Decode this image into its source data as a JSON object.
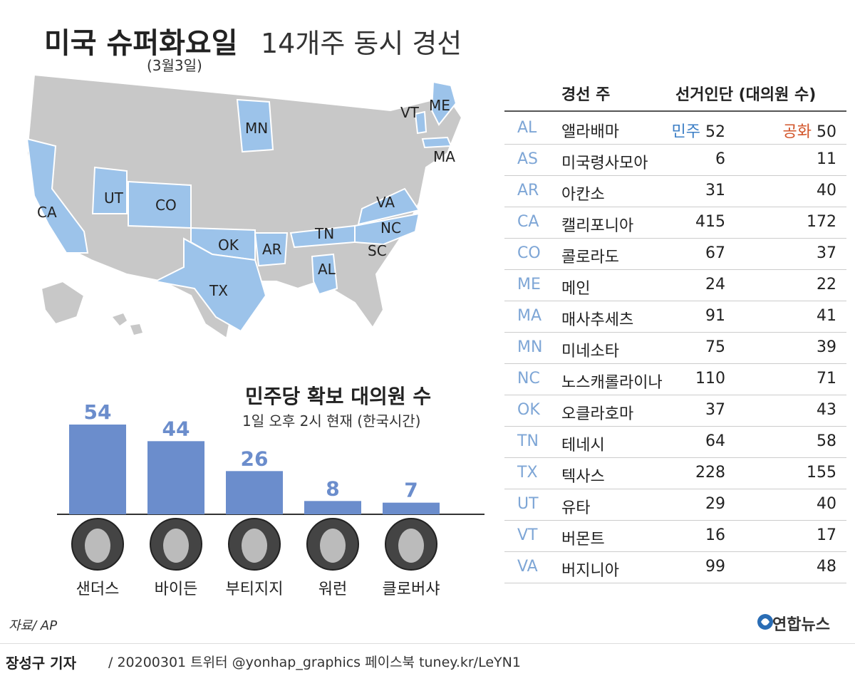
{
  "header": {
    "title_bold": "미국 슈퍼화요일",
    "title_light": "14개주 동시 경선",
    "date": "(3월3일)"
  },
  "map": {
    "highlight_color": "#9cc3ea",
    "base_color": "#c8c8c8",
    "labels": [
      "CA",
      "UT",
      "CO",
      "OK",
      "TX",
      "AR",
      "AL",
      "TN",
      "NC",
      "SC",
      "VA",
      "MN",
      "VT",
      "ME",
      "MA"
    ]
  },
  "table": {
    "header_state": "경선 주",
    "header_delegates": "선거인단 (대의원 수)",
    "dem_label": "민주",
    "rep_label": "공화",
    "dem_color": "#3d7fc6",
    "rep_color": "#d2552a",
    "rows": [
      {
        "abbr": "AL",
        "name": "앨라배마",
        "dem": "52",
        "rep": "50"
      },
      {
        "abbr": "AS",
        "name": "미국령사모아",
        "dem": "6",
        "rep": "11"
      },
      {
        "abbr": "AR",
        "name": "아칸소",
        "dem": "31",
        "rep": "40"
      },
      {
        "abbr": "CA",
        "name": "캘리포니아",
        "dem": "415",
        "rep": "172"
      },
      {
        "abbr": "CO",
        "name": "콜로라도",
        "dem": "67",
        "rep": "37"
      },
      {
        "abbr": "ME",
        "name": "메인",
        "dem": "24",
        "rep": "22"
      },
      {
        "abbr": "MA",
        "name": "매사추세츠",
        "dem": "91",
        "rep": "41"
      },
      {
        "abbr": "MN",
        "name": "미네소타",
        "dem": "75",
        "rep": "39"
      },
      {
        "abbr": "NC",
        "name": "노스캐롤라이나",
        "dem": "110",
        "rep": "71"
      },
      {
        "abbr": "OK",
        "name": "오클라호마",
        "dem": "37",
        "rep": "43"
      },
      {
        "abbr": "TN",
        "name": "테네시",
        "dem": "64",
        "rep": "58"
      },
      {
        "abbr": "TX",
        "name": "텍사스",
        "dem": "228",
        "rep": "155"
      },
      {
        "abbr": "UT",
        "name": "유타",
        "dem": "29",
        "rep": "40"
      },
      {
        "abbr": "VT",
        "name": "버몬트",
        "dem": "16",
        "rep": "17"
      },
      {
        "abbr": "VA",
        "name": "버지니아",
        "dem": "99",
        "rep": "48"
      }
    ]
  },
  "chart_data": {
    "type": "bar",
    "title": "민주당 확보 대의원 수",
    "subtitle": "1일 오후 2시 현재 (한국시간)",
    "categories": [
      "샌더스",
      "바이든",
      "부티지지",
      "워런",
      "클로버샤"
    ],
    "values": [
      54,
      44,
      26,
      8,
      7
    ],
    "bar_color": "#6b8dcc",
    "ylim": [
      0,
      60
    ]
  },
  "source": "자료/ AP",
  "logo": "연합뉴스",
  "footer": {
    "author": "장성구 기자",
    "rest": "/ 20200301 트위터 @yonhap_graphics  페이스북 tuney.kr/LeYN1"
  }
}
